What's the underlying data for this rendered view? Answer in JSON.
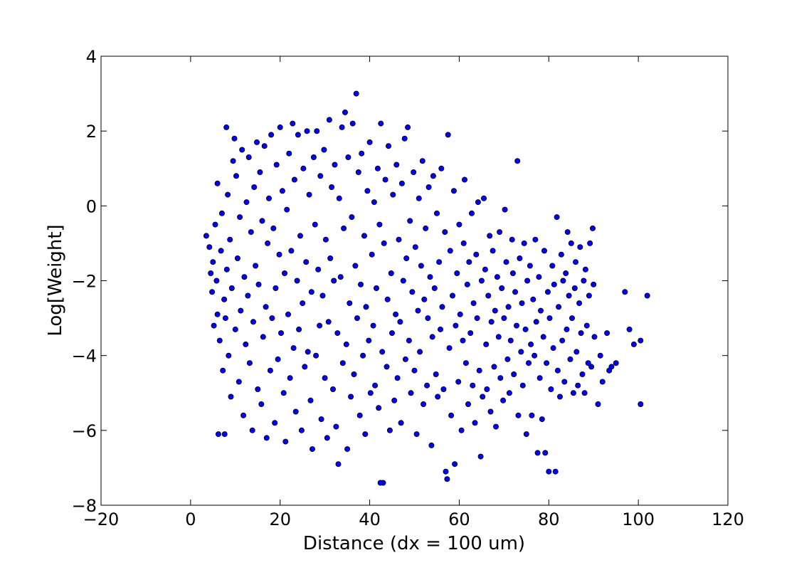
{
  "chart_data": {
    "type": "scatter",
    "title": "",
    "xlabel": "Distance (dx = 100 um)",
    "ylabel": "Log[Weight]",
    "xlim": [
      -20,
      120
    ],
    "ylim": [
      -8,
      4
    ],
    "x_ticks": [
      -20,
      0,
      20,
      40,
      60,
      80,
      100,
      120
    ],
    "x_tick_labels": [
      "−20",
      "0",
      "20",
      "40",
      "60",
      "80",
      "100",
      "120"
    ],
    "y_ticks": [
      -8,
      -6,
      -4,
      -2,
      0,
      2,
      4
    ],
    "y_tick_labels": [
      "−8",
      "−6",
      "−4",
      "−2",
      "0",
      "2",
      "4"
    ],
    "grid": false,
    "legend": "none",
    "marker_color": "#0000ff",
    "marker_edge_color": "#000000",
    "points": [
      [
        3.5,
        -0.8
      ],
      [
        4.2,
        -1.1
      ],
      [
        4.5,
        -1.8
      ],
      [
        4.8,
        -2.3
      ],
      [
        5.0,
        -1.5
      ],
      [
        5.2,
        -3.2
      ],
      [
        5.5,
        -0.5
      ],
      [
        5.8,
        -2.0
      ],
      [
        6.0,
        -2.9
      ],
      [
        6.0,
        0.6
      ],
      [
        6.2,
        -6.1
      ],
      [
        6.5,
        -3.6
      ],
      [
        6.8,
        -1.2
      ],
      [
        7.0,
        -0.2
      ],
      [
        7.2,
        -4.4
      ],
      [
        7.5,
        -2.5
      ],
      [
        7.6,
        -6.1
      ],
      [
        7.8,
        -3.0
      ],
      [
        8.0,
        2.1
      ],
      [
        8.1,
        -1.7
      ],
      [
        8.3,
        0.3
      ],
      [
        8.5,
        -4.0
      ],
      [
        8.8,
        -0.9
      ],
      [
        9.0,
        -5.1
      ],
      [
        9.2,
        -2.2
      ],
      [
        9.5,
        1.2
      ],
      [
        9.8,
        1.8
      ],
      [
        10.0,
        -3.3
      ],
      [
        10.2,
        0.8
      ],
      [
        10.5,
        -1.4
      ],
      [
        10.8,
        -4.7
      ],
      [
        11.0,
        -0.3
      ],
      [
        11.2,
        -2.8
      ],
      [
        11.5,
        1.5
      ],
      [
        11.8,
        -5.6
      ],
      [
        12.0,
        -1.9
      ],
      [
        12.3,
        -3.7
      ],
      [
        12.5,
        0.1
      ],
      [
        12.8,
        -2.4
      ],
      [
        13.0,
        1.3
      ],
      [
        13.2,
        -4.2
      ],
      [
        13.5,
        -0.7
      ],
      [
        13.8,
        -6.0
      ],
      [
        14.0,
        -3.1
      ],
      [
        14.2,
        0.5
      ],
      [
        14.5,
        -1.6
      ],
      [
        14.8,
        1.7
      ],
      [
        15.0,
        -4.9
      ],
      [
        15.2,
        -2.1
      ],
      [
        15.5,
        0.9
      ],
      [
        15.8,
        -5.3
      ],
      [
        16.0,
        -0.4
      ],
      [
        16.2,
        -3.5
      ],
      [
        16.5,
        1.6
      ],
      [
        16.8,
        -2.7
      ],
      [
        17.0,
        -6.2
      ],
      [
        17.2,
        -1.0
      ],
      [
        17.5,
        0.2
      ],
      [
        17.8,
        -4.4
      ],
      [
        18.0,
        1.9
      ],
      [
        18.2,
        -3.0
      ],
      [
        18.5,
        -0.6
      ],
      [
        18.8,
        -5.8
      ],
      [
        19.0,
        -2.2
      ],
      [
        19.2,
        1.1
      ],
      [
        19.5,
        -4.1
      ],
      [
        19.8,
        -1.3
      ],
      [
        20.0,
        2.1
      ],
      [
        20.2,
        -3.4
      ],
      [
        20.5,
        0.4
      ],
      [
        20.8,
        -5.0
      ],
      [
        21.0,
        -1.8
      ],
      [
        21.2,
        -6.3
      ],
      [
        21.5,
        -0.1
      ],
      [
        21.8,
        -2.9
      ],
      [
        22.0,
        1.4
      ],
      [
        22.2,
        -4.6
      ],
      [
        22.5,
        -1.2
      ],
      [
        22.8,
        2.2
      ],
      [
        23.0,
        -3.8
      ],
      [
        23.2,
        0.7
      ],
      [
        23.5,
        -5.5
      ],
      [
        23.8,
        -2.0
      ],
      [
        24.0,
        1.9
      ],
      [
        24.2,
        -3.3
      ],
      [
        24.5,
        -0.8
      ],
      [
        24.8,
        -6.0
      ],
      [
        25.0,
        -2.6
      ],
      [
        25.2,
        1.0
      ],
      [
        25.5,
        -4.3
      ],
      [
        25.8,
        -1.5
      ],
      [
        26.0,
        2.0
      ],
      [
        26.2,
        -3.9
      ],
      [
        26.5,
        0.3
      ],
      [
        26.8,
        -5.2
      ],
      [
        27.0,
        -2.3
      ],
      [
        27.2,
        -6.5
      ],
      [
        27.5,
        1.3
      ],
      [
        27.8,
        -0.5
      ],
      [
        28.0,
        -4.0
      ],
      [
        28.2,
        2.0
      ],
      [
        28.5,
        -1.7
      ],
      [
        28.8,
        -3.2
      ],
      [
        29.0,
        0.8
      ],
      [
        29.2,
        -5.7
      ],
      [
        29.5,
        -2.4
      ],
      [
        29.8,
        1.5
      ],
      [
        30.0,
        -4.6
      ],
      [
        30.2,
        -0.9
      ],
      [
        30.5,
        -6.2
      ],
      [
        30.8,
        -3.1
      ],
      [
        31.0,
        2.3
      ],
      [
        31.2,
        -1.4
      ],
      [
        31.5,
        0.5
      ],
      [
        31.8,
        -4.9
      ],
      [
        32.0,
        -2.0
      ],
      [
        32.2,
        1.1
      ],
      [
        32.5,
        -5.9
      ],
      [
        32.8,
        -3.4
      ],
      [
        33.0,
        -6.9
      ],
      [
        33.2,
        0.2
      ],
      [
        33.5,
        -1.9
      ],
      [
        33.8,
        2.1
      ],
      [
        34.0,
        -4.2
      ],
      [
        34.2,
        -0.6
      ],
      [
        34.5,
        2.5
      ],
      [
        34.8,
        -3.7
      ],
      [
        35.0,
        -6.5
      ],
      [
        35.2,
        1.3
      ],
      [
        35.5,
        -2.6
      ],
      [
        35.8,
        -5.1
      ],
      [
        36.0,
        -0.3
      ],
      [
        36.2,
        2.2
      ],
      [
        36.5,
        -4.5
      ],
      [
        36.8,
        -1.6
      ],
      [
        37.0,
        3.0
      ],
      [
        37.2,
        -3.0
      ],
      [
        37.5,
        0.9
      ],
      [
        37.8,
        -5.6
      ],
      [
        38.0,
        -2.1
      ],
      [
        38.2,
        1.4
      ],
      [
        38.5,
        -4.0
      ],
      [
        38.8,
        -0.8
      ],
      [
        39.0,
        -6.1
      ],
      [
        39.2,
        -2.7
      ],
      [
        39.5,
        0.4
      ],
      [
        39.8,
        -3.6
      ],
      [
        40.0,
        1.7
      ],
      [
        40.2,
        -5.0
      ],
      [
        40.5,
        -1.3
      ],
      [
        40.8,
        -3.2
      ],
      [
        41.0,
        0.1
      ],
      [
        41.2,
        -4.8
      ],
      [
        41.5,
        -2.2
      ],
      [
        41.8,
        1.0
      ],
      [
        42.0,
        -5.4
      ],
      [
        42.2,
        -0.5
      ],
      [
        42.5,
        2.2
      ],
      [
        42.8,
        -3.9
      ],
      [
        43.0,
        -7.4
      ],
      [
        42.4,
        -7.4
      ],
      [
        43.2,
        -1.0
      ],
      [
        43.5,
        0.7
      ],
      [
        43.8,
        -4.3
      ],
      [
        44.0,
        -2.5
      ],
      [
        44.2,
        1.6
      ],
      [
        44.5,
        -6.0
      ],
      [
        44.8,
        -1.8
      ],
      [
        45.0,
        -3.4
      ],
      [
        45.2,
        0.3
      ],
      [
        45.5,
        -5.2
      ],
      [
        45.8,
        -2.9
      ],
      [
        46.0,
        1.1
      ],
      [
        46.2,
        -4.6
      ],
      [
        46.5,
        -0.9
      ],
      [
        46.8,
        -3.1
      ],
      [
        47.0,
        -5.8
      ],
      [
        47.2,
        0.6
      ],
      [
        47.5,
        -2.0
      ],
      [
        47.8,
        1.8
      ],
      [
        48.0,
        -4.1
      ],
      [
        48.2,
        -1.4
      ],
      [
        48.5,
        2.1
      ],
      [
        48.8,
        -3.6
      ],
      [
        49.0,
        -0.4
      ],
      [
        49.2,
        -5.0
      ],
      [
        49.5,
        -2.3
      ],
      [
        49.8,
        0.9
      ],
      [
        50.0,
        -4.4
      ],
      [
        50.2,
        -1.1
      ],
      [
        50.5,
        -6.1
      ],
      [
        50.8,
        -2.8
      ],
      [
        51.0,
        0.2
      ],
      [
        51.2,
        -3.9
      ],
      [
        51.5,
        -1.6
      ],
      [
        51.8,
        1.2
      ],
      [
        52.0,
        -5.3
      ],
      [
        52.2,
        -2.5
      ],
      [
        52.5,
        -0.6
      ],
      [
        52.8,
        -4.8
      ],
      [
        53.0,
        -3.0
      ],
      [
        53.2,
        0.5
      ],
      [
        53.5,
        -1.9
      ],
      [
        53.8,
        -6.4
      ],
      [
        54.0,
        -3.5
      ],
      [
        54.2,
        0.8
      ],
      [
        54.5,
        -2.2
      ],
      [
        54.8,
        -4.5
      ],
      [
        55.0,
        -0.2
      ],
      [
        55.2,
        -5.1
      ],
      [
        55.5,
        -1.5
      ],
      [
        55.8,
        -3.3
      ],
      [
        56.0,
        1.0
      ],
      [
        56.2,
        -2.7
      ],
      [
        56.5,
        -4.9
      ],
      [
        56.8,
        -0.7
      ],
      [
        57.0,
        -7.1
      ],
      [
        57.3,
        -7.3
      ],
      [
        57.5,
        1.9
      ],
      [
        57.8,
        -3.8
      ],
      [
        58.0,
        -1.2
      ],
      [
        58.2,
        -5.6
      ],
      [
        58.5,
        -2.4
      ],
      [
        58.8,
        0.4
      ],
      [
        59.0,
        -6.9
      ],
      [
        59.2,
        -3.2
      ],
      [
        59.5,
        -1.8
      ],
      [
        59.8,
        -4.7
      ],
      [
        60.0,
        -0.5
      ],
      [
        60.2,
        -2.9
      ],
      [
        60.5,
        -6.0
      ],
      [
        60.8,
        -3.6
      ],
      [
        61.0,
        -1.0
      ],
      [
        61.2,
        0.7
      ],
      [
        61.5,
        -4.2
      ],
      [
        61.8,
        -2.1
      ],
      [
        62.0,
        -5.3
      ],
      [
        62.2,
        -1.5
      ],
      [
        62.5,
        -3.4
      ],
      [
        62.8,
        -0.2
      ],
      [
        63.0,
        -4.8
      ],
      [
        63.2,
        -2.6
      ],
      [
        63.5,
        -5.8
      ],
      [
        63.8,
        -1.3
      ],
      [
        64.0,
        -3.0
      ],
      [
        64.2,
        0.1
      ],
      [
        64.5,
        -4.4
      ],
      [
        64.8,
        -6.7
      ],
      [
        65.0,
        -2.0
      ],
      [
        65.2,
        -5.1
      ],
      [
        65.5,
        0.2
      ],
      [
        65.8,
        -1.7
      ],
      [
        66.0,
        -3.7
      ],
      [
        66.2,
        -4.9
      ],
      [
        66.5,
        -2.4
      ],
      [
        66.8,
        -0.8
      ],
      [
        67.0,
        -5.5
      ],
      [
        67.2,
        -3.1
      ],
      [
        67.5,
        -1.2
      ],
      [
        67.8,
        -4.3
      ],
      [
        68.0,
        -2.8
      ],
      [
        68.2,
        -5.9
      ],
      [
        68.5,
        -1.9
      ],
      [
        68.8,
        -3.5
      ],
      [
        69.0,
        -0.7
      ],
      [
        69.2,
        -4.6
      ],
      [
        69.5,
        -2.2
      ],
      [
        69.8,
        -5.2
      ],
      [
        70.0,
        -3.0
      ],
      [
        70.2,
        -0.1
      ],
      [
        70.5,
        -1.5
      ],
      [
        70.8,
        -4.1
      ],
      [
        71.0,
        -2.7
      ],
      [
        71.2,
        -5.0
      ],
      [
        71.5,
        -3.6
      ],
      [
        71.8,
        -0.9
      ],
      [
        72.0,
        -1.8
      ],
      [
        72.2,
        -4.5
      ],
      [
        72.5,
        -2.3
      ],
      [
        72.8,
        -3.2
      ],
      [
        73.0,
        1.2
      ],
      [
        73.2,
        -5.6
      ],
      [
        73.5,
        -1.4
      ],
      [
        73.8,
        -3.9
      ],
      [
        74.0,
        -2.6
      ],
      [
        74.2,
        -4.8
      ],
      [
        74.5,
        -1.0
      ],
      [
        74.8,
        -3.3
      ],
      [
        75.0,
        -6.1
      ],
      [
        75.2,
        -2.0
      ],
      [
        75.5,
        -4.2
      ],
      [
        75.8,
        -1.6
      ],
      [
        76.0,
        -3.7
      ],
      [
        76.2,
        -5.6
      ],
      [
        76.5,
        -2.5
      ],
      [
        76.8,
        -4.0
      ],
      [
        77.0,
        -0.9
      ],
      [
        77.2,
        -3.1
      ],
      [
        77.5,
        -6.6
      ],
      [
        77.8,
        -1.9
      ],
      [
        78.0,
        -4.6
      ],
      [
        78.2,
        -2.8
      ],
      [
        78.5,
        -5.7
      ],
      [
        78.8,
        -3.5
      ],
      [
        79.0,
        -1.2
      ],
      [
        79.2,
        -6.6
      ],
      [
        79.5,
        -4.2
      ],
      [
        79.8,
        -2.3
      ],
      [
        80.0,
        -7.1
      ],
      [
        80.2,
        -3.0
      ],
      [
        80.5,
        -4.9
      ],
      [
        80.8,
        -1.6
      ],
      [
        81.0,
        -3.8
      ],
      [
        81.2,
        -2.1
      ],
      [
        81.5,
        -7.1
      ],
      [
        81.8,
        -0.3
      ],
      [
        82.0,
        -4.4
      ],
      [
        82.2,
        -2.7
      ],
      [
        82.5,
        -5.1
      ],
      [
        82.8,
        -1.3
      ],
      [
        83.0,
        -3.6
      ],
      [
        83.2,
        -2.0
      ],
      [
        83.5,
        -4.7
      ],
      [
        83.8,
        -1.8
      ],
      [
        84.0,
        -3.3
      ],
      [
        84.2,
        -0.7
      ],
      [
        84.5,
        -2.4
      ],
      [
        84.8,
        -4.1
      ],
      [
        85.0,
        -1.0
      ],
      [
        85.2,
        -3.0
      ],
      [
        85.5,
        -5.0
      ],
      [
        85.8,
        -2.2
      ],
      [
        86.0,
        -1.5
      ],
      [
        86.2,
        -3.9
      ],
      [
        86.5,
        -4.8
      ],
      [
        86.8,
        -2.6
      ],
      [
        87.0,
        -1.1
      ],
      [
        87.2,
        -3.4
      ],
      [
        87.5,
        -4.5
      ],
      [
        87.8,
        -2.0
      ],
      [
        88.0,
        -5.0
      ],
      [
        88.2,
        -1.7
      ],
      [
        88.5,
        -3.2
      ],
      [
        88.8,
        -4.2
      ],
      [
        89.0,
        -2.4
      ],
      [
        89.2,
        -1.0
      ],
      [
        89.5,
        -4.3
      ],
      [
        89.8,
        -0.6
      ],
      [
        90.0,
        -2.1
      ],
      [
        90.2,
        -3.5
      ],
      [
        91.0,
        -5.3
      ],
      [
        91.5,
        -4.0
      ],
      [
        92.0,
        -4.7
      ],
      [
        93.0,
        -3.4
      ],
      [
        93.5,
        -4.4
      ],
      [
        94.0,
        -4.3
      ],
      [
        95.0,
        -4.2
      ],
      [
        97.0,
        -2.3
      ],
      [
        98.0,
        -3.3
      ],
      [
        99.0,
        -3.7
      ],
      [
        100.5,
        -5.3
      ],
      [
        100.5,
        -3.6
      ],
      [
        102.0,
        -2.4
      ]
    ]
  }
}
